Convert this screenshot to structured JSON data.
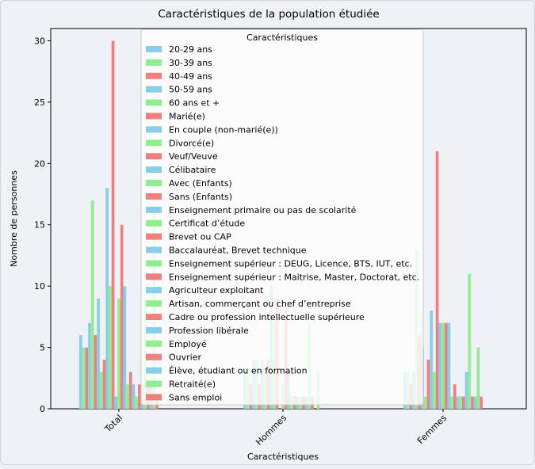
{
  "chart_data": {
    "type": "bar",
    "title": "Caractéristiques de la population étudiée",
    "xlabel": "Caractéristiques",
    "ylabel": "Nombre de personnes",
    "ylim": [
      0,
      31
    ],
    "yticks": [
      0,
      5,
      10,
      15,
      20,
      25,
      30
    ],
    "categories": [
      "Total",
      "Hommes",
      "Femmes"
    ],
    "legend_title": "Caractéristiques",
    "legend_position": "top-center",
    "grid": false,
    "series_palette": [
      "#87ceeb",
      "#90ee90",
      "#f08080"
    ],
    "series": [
      {
        "name": "20-29 ans",
        "values": [
          6,
          3,
          3
        ]
      },
      {
        "name": "30-39 ans",
        "values": [
          5,
          3,
          3
        ]
      },
      {
        "name": "40-49 ans",
        "values": [
          5,
          2,
          2
        ]
      },
      {
        "name": "50-59 ans",
        "values": [
          7,
          4,
          3
        ]
      },
      {
        "name": "60 ans et +",
        "values": [
          17,
          4,
          13
        ]
      },
      {
        "name": "Marié(e)",
        "values": [
          6,
          2,
          6
        ]
      },
      {
        "name": "En couple (non-marié(e))",
        "values": [
          9,
          4,
          5
        ]
      },
      {
        "name": "Divorcé(e)",
        "values": [
          3,
          3,
          1
        ]
      },
      {
        "name": "Veuf/Veuve",
        "values": [
          4,
          4,
          4
        ]
      },
      {
        "name": "Célibataire",
        "values": [
          18,
          10,
          8
        ]
      },
      {
        "name": "Avec (Enfants)",
        "values": [
          10,
          7,
          3
        ]
      },
      {
        "name": "Sans (Enfants)",
        "values": [
          30,
          9,
          21
        ]
      },
      {
        "name": "Enseignement primaire ou pas de scolarité",
        "values": [
          1,
          0,
          7
        ]
      },
      {
        "name": "Certificat d’étude",
        "values": [
          9,
          2,
          7
        ]
      },
      {
        "name": "Brevet ou CAP",
        "values": [
          15,
          8,
          7
        ]
      },
      {
        "name": "Baccalauréat, Brevet technique",
        "values": [
          10,
          3,
          7
        ]
      },
      {
        "name": "Enseignement supérieur : DEUG, Licence, BTS, IUT, etc.",
        "values": [
          2,
          1,
          1
        ]
      },
      {
        "name": "Enseignement supérieur : Maitrise, Master, Doctorat, etc.",
        "values": [
          3,
          1,
          2
        ]
      },
      {
        "name": "Agriculteur exploitant",
        "values": [
          2,
          1,
          1
        ]
      },
      {
        "name": "Artisan, commerçant ou chef d’entreprise",
        "values": [
          1,
          1,
          1
        ]
      },
      {
        "name": "Cadre ou profession intellectuelle supérieure",
        "values": [
          2,
          1,
          1
        ]
      },
      {
        "name": "Profession libérale",
        "values": [
          2,
          1,
          3
        ]
      },
      {
        "name": "Employé",
        "values": [
          9,
          7,
          11
        ]
      },
      {
        "name": "Ouvrier",
        "values": [
          2,
          1,
          1
        ]
      },
      {
        "name": "Élève, étudiant ou en formation",
        "values": [
          2,
          0,
          1
        ]
      },
      {
        "name": "Retraité(e)",
        "values": [
          16,
          3,
          5
        ]
      },
      {
        "name": "Sans emploi",
        "values": [
          1,
          0,
          1
        ]
      }
    ]
  }
}
